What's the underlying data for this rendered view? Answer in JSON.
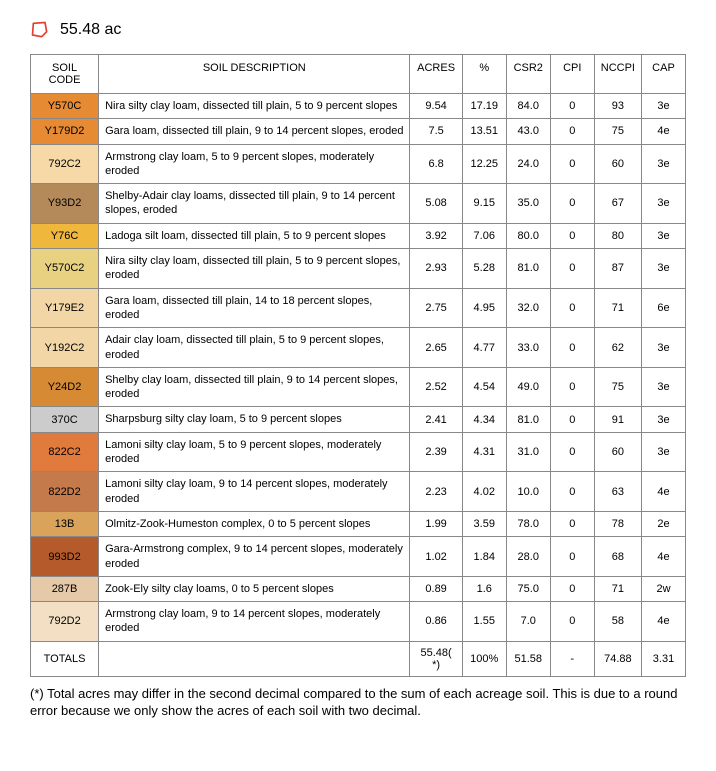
{
  "header": {
    "acres_label": "55.48 ac"
  },
  "table": {
    "columns": [
      "SOIL CODE",
      "SOIL DESCRIPTION",
      "ACRES",
      "%",
      "CSR2",
      "CPI",
      "NCCPI",
      "CAP"
    ],
    "rows": [
      {
        "code": "Y570C",
        "color": "#e68a33",
        "desc": "Nira silty clay loam, dissected till plain, 5 to 9 percent slopes",
        "acres": "9.54",
        "pct": "17.19",
        "csr2": "84.0",
        "cpi": "0",
        "nccpi": "93",
        "cap": "3e"
      },
      {
        "code": "Y179D2",
        "color": "#e68a33",
        "desc": "Gara loam, dissected till plain, 9 to 14 percent slopes, eroded",
        "acres": "7.5",
        "pct": "13.51",
        "csr2": "43.0",
        "cpi": "0",
        "nccpi": "75",
        "cap": "4e"
      },
      {
        "code": "792C2",
        "color": "#f7d9a8",
        "desc": "Armstrong clay loam, 5 to 9 percent slopes, moderately eroded",
        "acres": "6.8",
        "pct": "12.25",
        "csr2": "24.0",
        "cpi": "0",
        "nccpi": "60",
        "cap": "3e"
      },
      {
        "code": "Y93D2",
        "color": "#b58a5a",
        "desc": "Shelby-Adair clay loams, dissected till plain, 9 to 14 percent slopes, eroded",
        "acres": "5.08",
        "pct": "9.15",
        "csr2": "35.0",
        "cpi": "0",
        "nccpi": "67",
        "cap": "3e"
      },
      {
        "code": "Y76C",
        "color": "#f0b73d",
        "desc": "Ladoga silt loam, dissected till plain, 5 to 9 percent slopes",
        "acres": "3.92",
        "pct": "7.06",
        "csr2": "80.0",
        "cpi": "0",
        "nccpi": "80",
        "cap": "3e"
      },
      {
        "code": "Y570C2",
        "color": "#e8d181",
        "desc": "Nira silty clay loam, dissected till plain, 5 to 9 percent slopes, eroded",
        "acres": "2.93",
        "pct": "5.28",
        "csr2": "81.0",
        "cpi": "0",
        "nccpi": "87",
        "cap": "3e"
      },
      {
        "code": "Y179E2",
        "color": "#f3d6a6",
        "desc": "Gara loam, dissected till plain, 14 to 18 percent slopes, eroded",
        "acres": "2.75",
        "pct": "4.95",
        "csr2": "32.0",
        "cpi": "0",
        "nccpi": "71",
        "cap": "6e"
      },
      {
        "code": "Y192C2",
        "color": "#f3d6a6",
        "desc": "Adair clay loam, dissected till plain, 5 to 9 percent slopes, eroded",
        "acres": "2.65",
        "pct": "4.77",
        "csr2": "33.0",
        "cpi": "0",
        "nccpi": "62",
        "cap": "3e"
      },
      {
        "code": "Y24D2",
        "color": "#d68a33",
        "desc": "Shelby clay loam, dissected till plain, 9 to 14 percent slopes, eroded",
        "acres": "2.52",
        "pct": "4.54",
        "csr2": "49.0",
        "cpi": "0",
        "nccpi": "75",
        "cap": "3e"
      },
      {
        "code": "370C",
        "color": "#cccccc",
        "desc": "Sharpsburg silty clay loam, 5 to 9 percent slopes",
        "acres": "2.41",
        "pct": "4.34",
        "csr2": "81.0",
        "cpi": "0",
        "nccpi": "91",
        "cap": "3e"
      },
      {
        "code": "822C2",
        "color": "#e07a3d",
        "desc": "Lamoni silty clay loam, 5 to 9 percent slopes, moderately eroded",
        "acres": "2.39",
        "pct": "4.31",
        "csr2": "31.0",
        "cpi": "0",
        "nccpi": "60",
        "cap": "3e"
      },
      {
        "code": "822D2",
        "color": "#c47a4a",
        "desc": "Lamoni silty clay loam, 9 to 14 percent slopes, moderately eroded",
        "acres": "2.23",
        "pct": "4.02",
        "csr2": "10.0",
        "cpi": "0",
        "nccpi": "63",
        "cap": "4e"
      },
      {
        "code": "13B",
        "color": "#d9a35c",
        "desc": "Olmitz-Zook-Humeston complex, 0 to 5 percent slopes",
        "acres": "1.99",
        "pct": "3.59",
        "csr2": "78.0",
        "cpi": "0",
        "nccpi": "78",
        "cap": "2e"
      },
      {
        "code": "993D2",
        "color": "#b55a2a",
        "desc": "Gara-Armstrong complex, 9 to 14 percent slopes, moderately eroded",
        "acres": "1.02",
        "pct": "1.84",
        "csr2": "28.0",
        "cpi": "0",
        "nccpi": "68",
        "cap": "4e"
      },
      {
        "code": "287B",
        "color": "#e6c9a8",
        "desc": "Zook-Ely silty clay loams, 0 to 5 percent slopes",
        "acres": "0.89",
        "pct": "1.6",
        "csr2": "75.0",
        "cpi": "0",
        "nccpi": "71",
        "cap": "2w"
      },
      {
        "code": "792D2",
        "color": "#f3e0c4",
        "desc": "Armstrong clay loam, 9 to 14 percent slopes, moderately eroded",
        "acres": "0.86",
        "pct": "1.55",
        "csr2": "7.0",
        "cpi": "0",
        "nccpi": "58",
        "cap": "4e"
      }
    ],
    "totals": {
      "label": "TOTALS",
      "acres": "55.48( *)",
      "pct": "100%",
      "csr2": "51.58",
      "cpi": "-",
      "nccpi": "74.88",
      "cap": "3.31"
    }
  },
  "footnote": "(*) Total acres may differ in the second decimal compared to the sum of each acreage soil. This is due to a round error because we only show the acres of each soil with two decimal."
}
